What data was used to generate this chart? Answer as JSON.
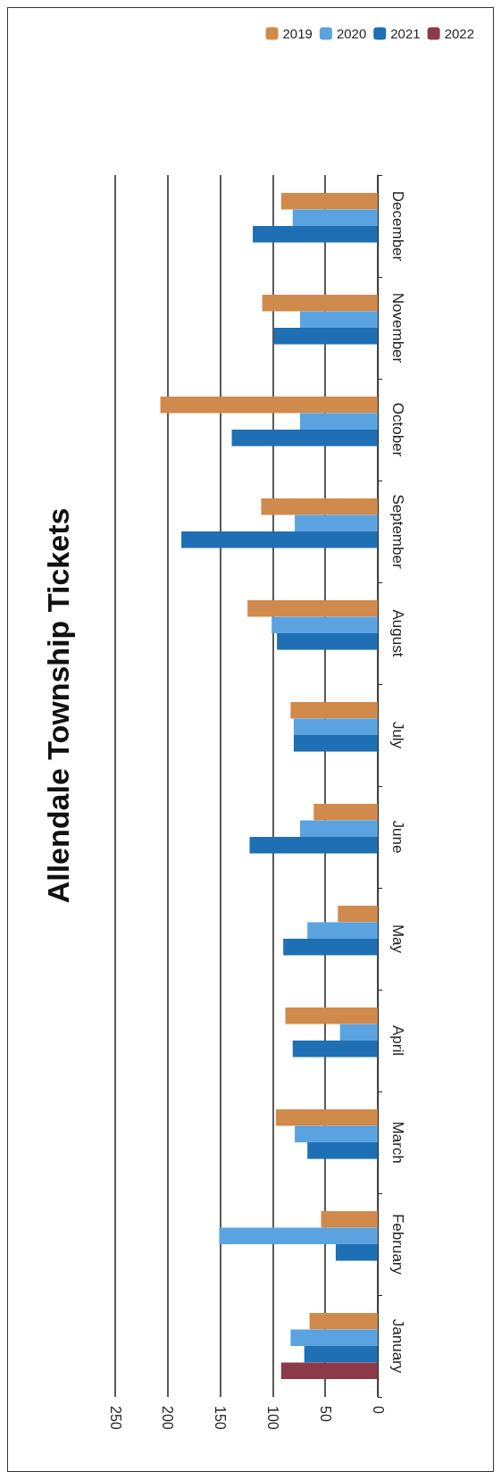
{
  "chart_data": {
    "type": "bar",
    "title": "Allendale Township Tickets",
    "orientation": "horizontal",
    "categories": [
      "December",
      "November",
      "October",
      "September",
      "August",
      "July",
      "June",
      "May",
      "April",
      "March",
      "February",
      "January"
    ],
    "series": [
      {
        "name": "2019",
        "color": "#d08a4c",
        "values": [
          92,
          110,
          207,
          111,
          124,
          83,
          61,
          38,
          88,
          97,
          54,
          65
        ]
      },
      {
        "name": "2020",
        "color": "#5ba3e0",
        "values": [
          81,
          74,
          74,
          79,
          101,
          80,
          74,
          67,
          36,
          79,
          151,
          83
        ]
      },
      {
        "name": "2021",
        "color": "#1f6fb4",
        "values": [
          119,
          99,
          139,
          187,
          96,
          80,
          122,
          90,
          81,
          67,
          40,
          70
        ]
      },
      {
        "name": "2022",
        "color": "#8b3a4a",
        "values": [
          null,
          null,
          null,
          null,
          null,
          null,
          null,
          null,
          null,
          null,
          null,
          92
        ]
      }
    ],
    "xlim": [
      250,
      0
    ],
    "xticks": [
      250,
      200,
      150,
      100,
      50,
      0
    ],
    "grid": "x",
    "legend": "top right"
  }
}
